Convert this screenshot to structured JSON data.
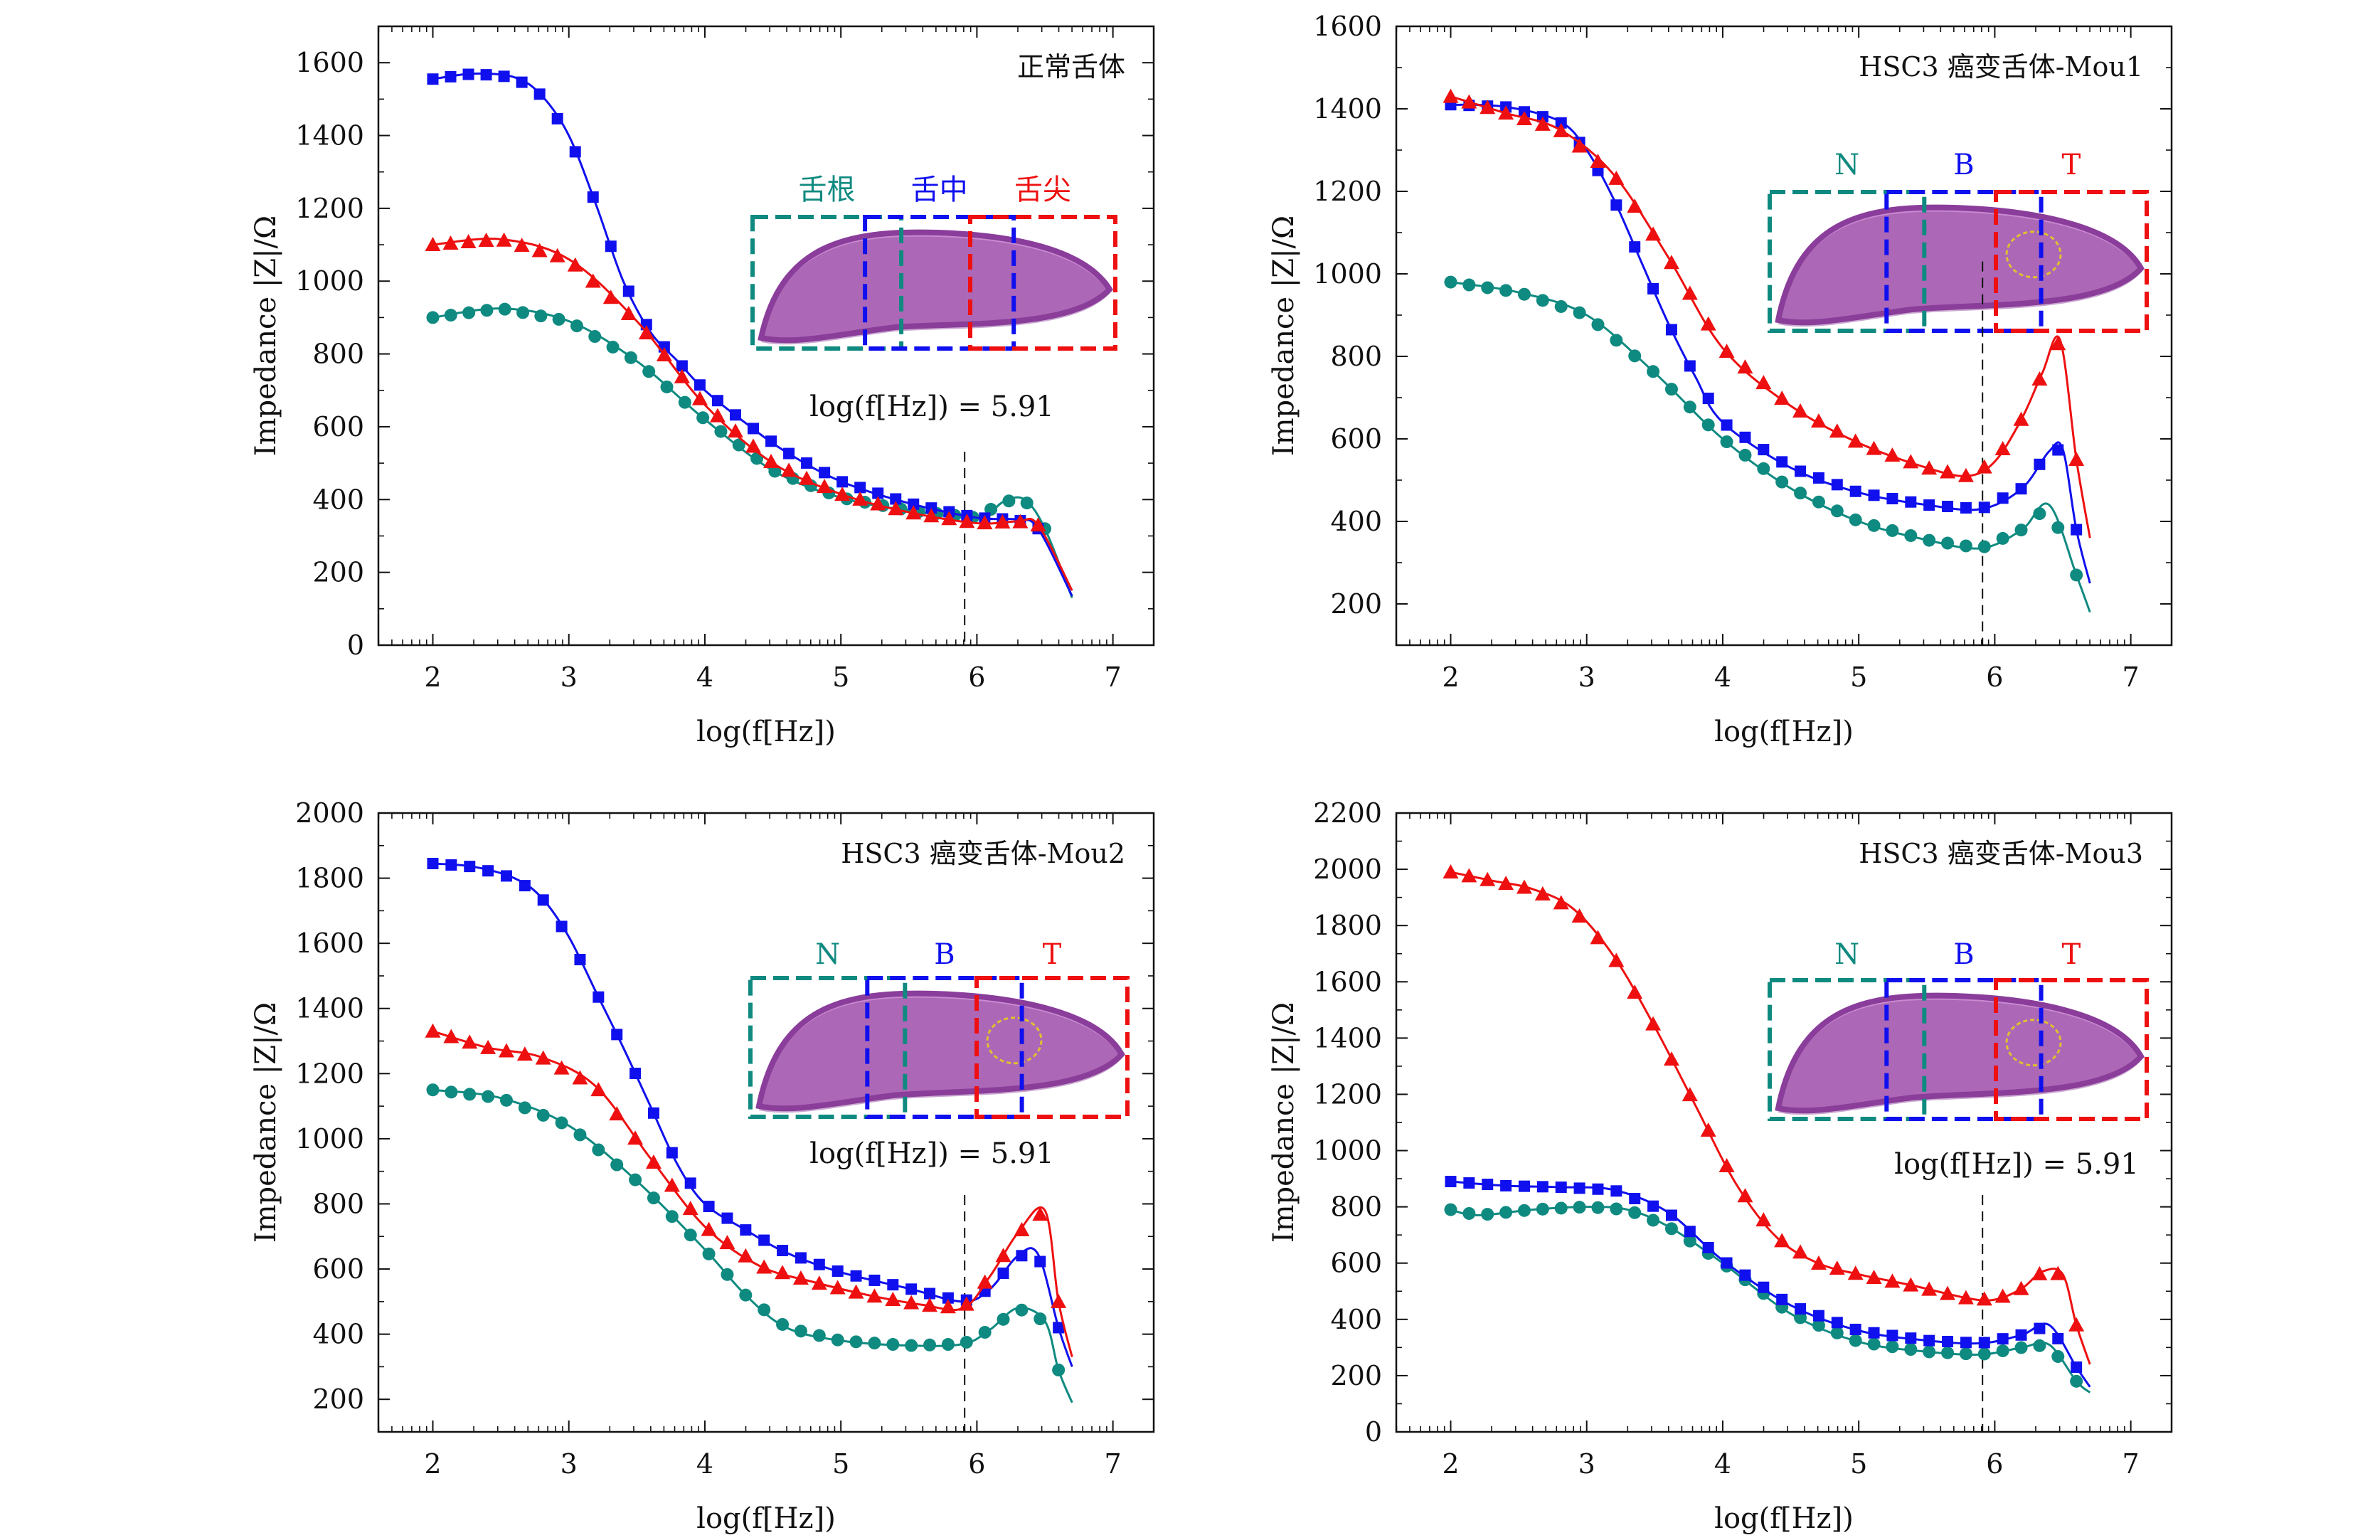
{
  "colors": {
    "N": "#0f8a80",
    "B": "#1010ee",
    "T": "#ee1010",
    "tissue": "#8a3d9a",
    "tissue_light": "#c98ad0",
    "tumor_outline": "#e0c030"
  },
  "chart_data": [
    {
      "type": "line",
      "title": "正常舌体",
      "xlabel": "log(f[Hz])",
      "ylabel": "Impedance |Z|/Ω",
      "xlim": [
        1.6,
        7.3
      ],
      "ylim": [
        0,
        1700
      ],
      "xticks": [
        "2",
        "3",
        "4",
        "5",
        "6",
        "7"
      ],
      "yticks": [
        "0",
        "200",
        "400",
        "600",
        "800",
        "1000",
        "1200",
        "1400",
        "1600"
      ],
      "marker_line": {
        "x": 5.91,
        "label": "log(f[Hz]) = 5.91"
      },
      "inset": {
        "region_labels": [
          "舌根",
          "舌中",
          "舌尖"
        ],
        "tumor": false
      },
      "series": [
        {
          "key": "N",
          "marker": "circle",
          "x": [
            2,
            2.5,
            3,
            3.5,
            4,
            4.5,
            5,
            5.5,
            6,
            6.2,
            6.35,
            6.5,
            6.7
          ],
          "y": [
            900,
            925,
            890,
            780,
            620,
            480,
            405,
            370,
            350,
            395,
            400,
            320,
            130
          ]
        },
        {
          "key": "B",
          "marker": "square",
          "x": [
            2,
            2.3,
            2.6,
            2.8,
            3,
            3.2,
            3.4,
            3.6,
            3.8,
            4,
            4.3,
            4.6,
            5,
            5.5,
            6,
            6.3,
            6.45,
            6.7
          ],
          "y": [
            1555,
            1570,
            1560,
            1510,
            1400,
            1210,
            1000,
            860,
            780,
            700,
            610,
            530,
            450,
            390,
            350,
            345,
            320,
            135
          ]
        },
        {
          "key": "T",
          "marker": "triangle",
          "x": [
            2,
            2.5,
            3,
            3.5,
            4,
            4.5,
            5,
            5.5,
            6,
            6.3,
            6.45,
            6.7
          ],
          "y": [
            1100,
            1115,
            1060,
            890,
            660,
            500,
            415,
            365,
            335,
            340,
            330,
            150
          ]
        }
      ]
    },
    {
      "type": "line",
      "title": "HSC3 癌变舌体-Mou1",
      "xlabel": "log(f[Hz])",
      "ylabel": "Impedance |Z|/Ω",
      "xlim": [
        1.6,
        7.3
      ],
      "ylim": [
        100,
        1600
      ],
      "xticks": [
        "2",
        "3",
        "4",
        "5",
        "6",
        "7"
      ],
      "yticks": [
        "200",
        "400",
        "600",
        "800",
        "1000",
        "1200",
        "1400",
        "1600"
      ],
      "marker_line": {
        "x": 5.91,
        "label": ""
      },
      "inset": {
        "region_labels": [
          "N",
          "B",
          "T"
        ],
        "tumor": true
      },
      "series": [
        {
          "key": "N",
          "marker": "circle",
          "x": [
            2,
            2.5,
            3,
            3.5,
            4,
            4.5,
            5,
            5.5,
            5.9,
            6.2,
            6.4,
            6.6,
            6.7
          ],
          "y": [
            980,
            955,
            900,
            760,
            600,
            480,
            400,
            355,
            335,
            380,
            440,
            270,
            180
          ]
        },
        {
          "key": "B",
          "marker": "square",
          "x": [
            2,
            2.4,
            2.8,
            3,
            3.2,
            3.4,
            3.6,
            3.8,
            4,
            4.5,
            5,
            5.5,
            5.9,
            6.2,
            6.4,
            6.5,
            6.6,
            6.7
          ],
          "y": [
            1410,
            1405,
            1370,
            1300,
            1180,
            1030,
            880,
            750,
            640,
            530,
            470,
            440,
            430,
            480,
            570,
            575,
            380,
            250
          ]
        },
        {
          "key": "T",
          "marker": "triangle",
          "x": [
            2,
            2.4,
            2.8,
            3.2,
            3.6,
            4,
            4.5,
            5,
            5.5,
            5.8,
            6,
            6.2,
            6.35,
            6.48,
            6.6,
            6.7
          ],
          "y": [
            1430,
            1390,
            1350,
            1240,
            1040,
            820,
            680,
            590,
            530,
            510,
            545,
            650,
            760,
            840,
            550,
            360
          ]
        }
      ]
    },
    {
      "type": "line",
      "title": "HSC3 癌变舌体-Mou2",
      "xlabel": "log(f[Hz])",
      "ylabel": "Impedance |Z|/Ω",
      "xlim": [
        1.6,
        7.3
      ],
      "ylim": [
        100,
        2000
      ],
      "xticks": [
        "2",
        "3",
        "4",
        "5",
        "6",
        "7"
      ],
      "yticks": [
        "200",
        "400",
        "600",
        "800",
        "1000",
        "1200",
        "1400",
        "1600",
        "1800",
        "2000"
      ],
      "marker_line": {
        "x": 5.91,
        "label": "log(f[Hz]) = 5.91"
      },
      "inset": {
        "region_labels": [
          "N",
          "B",
          "T"
        ],
        "tumor": true
      },
      "series": [
        {
          "key": "N",
          "marker": "circle",
          "x": [
            2,
            2.5,
            3,
            3.5,
            4,
            4.3,
            4.6,
            5,
            5.5,
            5.9,
            6.1,
            6.3,
            6.5,
            6.6,
            6.7
          ],
          "y": [
            1150,
            1125,
            1040,
            870,
            660,
            520,
            420,
            380,
            365,
            370,
            415,
            480,
            440,
            290,
            190
          ]
        },
        {
          "key": "B",
          "marker": "square",
          "x": [
            2,
            2.3,
            2.6,
            2.8,
            3,
            3.2,
            3.4,
            3.6,
            3.8,
            4,
            4.3,
            4.6,
            5,
            5.5,
            5.9,
            6.1,
            6.3,
            6.45,
            6.6,
            6.7
          ],
          "y": [
            1845,
            1835,
            1800,
            1740,
            1620,
            1450,
            1280,
            1100,
            920,
            800,
            720,
            650,
            590,
            540,
            500,
            540,
            640,
            645,
            420,
            300
          ]
        },
        {
          "key": "T",
          "marker": "triangle",
          "x": [
            2,
            2.4,
            2.8,
            3.2,
            3.6,
            4,
            4.4,
            4.8,
            5.2,
            5.6,
            5.9,
            6.1,
            6.3,
            6.5,
            6.6,
            6.7
          ],
          "y": [
            1330,
            1280,
            1250,
            1160,
            940,
            730,
            610,
            560,
            520,
            490,
            480,
            580,
            710,
            780,
            500,
            330
          ]
        }
      ]
    },
    {
      "type": "line",
      "title": "HSC3 癌变舌体-Mou3",
      "xlabel": "log(f[Hz])",
      "ylabel": "Impedance |Z|/Ω",
      "xlim": [
        1.6,
        7.3
      ],
      "ylim": [
        0,
        2200
      ],
      "xticks": [
        "2",
        "3",
        "4",
        "5",
        "6",
        "7"
      ],
      "yticks": [
        "0",
        "200",
        "400",
        "600",
        "800",
        "1000",
        "1200",
        "1400",
        "1600",
        "1800",
        "2000",
        "2200"
      ],
      "marker_line": {
        "x": 5.91,
        "label": "log(f[Hz]) = 5.91"
      },
      "inset": {
        "region_labels": [
          "N",
          "B",
          "T"
        ],
        "tumor": true
      },
      "series": [
        {
          "key": "N",
          "marker": "circle",
          "x": [
            2,
            2.2,
            2.6,
            3,
            3.3,
            3.6,
            4,
            4.5,
            5,
            5.5,
            5.9,
            6.2,
            6.4,
            6.6,
            6.7
          ],
          "y": [
            790,
            770,
            790,
            800,
            790,
            730,
            600,
            420,
            320,
            285,
            275,
            300,
            310,
            180,
            140
          ]
        },
        {
          "key": "B",
          "marker": "square",
          "x": [
            2,
            2.4,
            2.8,
            3.2,
            3.6,
            4,
            4.5,
            5,
            5.5,
            5.9,
            6.2,
            6.4,
            6.6,
            6.7
          ],
          "y": [
            890,
            875,
            870,
            860,
            780,
            610,
            450,
            360,
            325,
            315,
            345,
            380,
            230,
            160
          ]
        },
        {
          "key": "T",
          "marker": "triangle",
          "x": [
            2,
            2.3,
            2.6,
            2.9,
            3.2,
            3.5,
            3.8,
            4.1,
            4.4,
            4.7,
            5,
            5.4,
            5.8,
            6,
            6.2,
            6.35,
            6.5,
            6.6,
            6.7
          ],
          "y": [
            1990,
            1960,
            1930,
            1860,
            1690,
            1440,
            1160,
            880,
            690,
            600,
            560,
            520,
            475,
            470,
            510,
            570,
            560,
            380,
            240
          ]
        }
      ]
    }
  ]
}
